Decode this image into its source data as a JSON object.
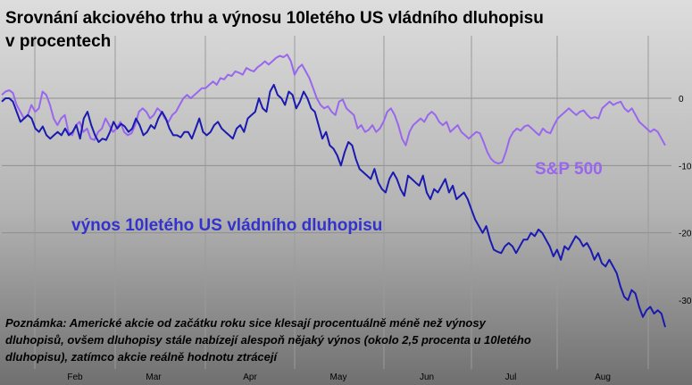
{
  "chart_data": {
    "type": "line",
    "title_line1": "Srovnání akciového trhu a výnosu 10letého US vládního dluhopisu",
    "title_line2": "v procentech",
    "note": "Poznámka: Americké akcie od začátku roku sice klesají procentuálně méně než výnosy dluhopisů, ovšem dluhopisy stále nabízejí alespoň nějaký výnos (okolo 2,5 procenta u 10letého dluhopisu), zatímco akcie reálně hodnotu ztrácejí",
    "x_ticks": [
      "Feb",
      "Mar",
      "Apr",
      "May",
      "Jun",
      "Jul",
      "Aug"
    ],
    "y_ticks": [
      0,
      -10,
      -20,
      -30
    ],
    "ylim": [
      -36,
      8
    ],
    "grid": true,
    "colors": {
      "sp500": "#9966ee",
      "yield": "#1a1ab0",
      "background_top": "#d8d8d8",
      "background_bottom": "#6e6e6e"
    },
    "series": [
      {
        "name": "S&P 500",
        "values": [
          0.5,
          1,
          1.2,
          0.8,
          -1,
          -2,
          -3,
          -2.5,
          -1,
          -2,
          -1.5,
          1,
          0.5,
          -1,
          -3,
          -4,
          -3,
          -2.5,
          -5,
          -5.5,
          -4,
          -3.5,
          -5,
          -4.5,
          -6,
          -6.2,
          -5,
          -4.5,
          -3,
          -4,
          -5,
          -4.5,
          -3.5,
          -5,
          -5.5,
          -5.2,
          -4,
          -2,
          -1.5,
          -2,
          -3,
          -2.5,
          -1.5,
          -2,
          -3,
          -3.5,
          -2.5,
          -2,
          -1,
          0,
          0.5,
          0,
          0.5,
          1,
          1.5,
          1.5,
          2,
          2.5,
          2,
          3,
          2.8,
          3.5,
          3.3,
          4,
          3.8,
          3.5,
          4.5,
          4.2,
          4,
          4.6,
          5,
          5.5,
          5,
          5.5,
          6,
          6.3,
          6.1,
          6.5,
          5.5,
          3.5,
          4.5,
          5,
          4,
          3,
          1.5,
          0,
          -1,
          -1.5,
          -1.2,
          -2,
          -2.5,
          -0.5,
          -0.2,
          -1.5,
          -2,
          -2.5,
          -4.5,
          -4,
          -5,
          -4.7,
          -4,
          -5,
          -4.5,
          -3.5,
          -2,
          -1.5,
          -2.5,
          -4,
          -6,
          -7,
          -5,
          -4,
          -3.5,
          -3,
          -3.5,
          -2.5,
          -2,
          -2.5,
          -3.5,
          -4,
          -3.5,
          -5,
          -4.5,
          -4,
          -5,
          -5.5,
          -6,
          -5.5,
          -5,
          -5.2,
          -6.5,
          -8,
          -9,
          -9.5,
          -9.7,
          -9.5,
          -8,
          -6,
          -5,
          -4.5,
          -4.8,
          -4.2,
          -4,
          -4.5,
          -5,
          -5.5,
          -4.5,
          -5,
          -5.2,
          -4,
          -3,
          -2.5,
          -2,
          -1.5,
          -2,
          -2.5,
          -2,
          -1.8,
          -2.5,
          -3,
          -2.8,
          -3,
          -1.5,
          -1,
          -0.5,
          -1,
          -0.7,
          -0.5,
          -1.5,
          -2,
          -1.5,
          -2.5,
          -3.5,
          -4,
          -4.5,
          -5,
          -4.6,
          -5,
          -6,
          -7
        ]
      },
      {
        "name": "výnos 10letého US vládního dluhopisu",
        "values": [
          -0.5,
          0,
          0,
          -0.5,
          -2,
          -3.5,
          -3,
          -2.5,
          -3,
          -4.5,
          -5,
          -4.2,
          -5.5,
          -6,
          -5.5,
          -5,
          -5.5,
          -4.5,
          -5.5,
          -5,
          -4,
          -6,
          -3,
          -2,
          -4,
          -5.5,
          -6.5,
          -6,
          -6.2,
          -5,
          -3.5,
          -4.5,
          -3.8,
          -4.2,
          -5,
          -4.5,
          -3,
          -4,
          -5.5,
          -5,
          -4,
          -4.5,
          -3,
          -2,
          -3,
          -4.5,
          -5.5,
          -5.5,
          -5.8,
          -5,
          -5,
          -6,
          -4.5,
          -3,
          -5,
          -5.5,
          -5,
          -4,
          -3.5,
          -4.5,
          -5,
          -5.5,
          -6,
          -4.5,
          -4,
          -5,
          -3,
          -2.5,
          -2,
          0,
          -1.5,
          -2,
          1,
          2,
          0.5,
          0,
          -1,
          1,
          0.5,
          -1.5,
          -0.5,
          1,
          0,
          -1.5,
          -2,
          -4,
          -6,
          -5,
          -7,
          -7.5,
          -8.5,
          -10,
          -8,
          -6.5,
          -7,
          -9,
          -10.5,
          -11,
          -11.5,
          -12,
          -10.5,
          -12.5,
          -13.5,
          -14,
          -12,
          -11,
          -12,
          -13.5,
          -14.5,
          -11.5,
          -12,
          -12.5,
          -13,
          -11.5,
          -14,
          -15,
          -13.5,
          -14,
          -13,
          -12,
          -14,
          -13,
          -15,
          -14.5,
          -14,
          -15,
          -16.5,
          -18,
          -19,
          -20,
          -19,
          -21,
          -22.5,
          -22.8,
          -23,
          -22,
          -21.5,
          -22,
          -23,
          -22,
          -21,
          -21,
          -20,
          -20.5,
          -19.5,
          -20,
          -21,
          -22,
          -23.5,
          -22.5,
          -24,
          -22,
          -22.5,
          -21.5,
          -20.5,
          -21,
          -22,
          -21.5,
          -22.5,
          -24,
          -23,
          -24.5,
          -25,
          -24,
          -25,
          -26,
          -28,
          -29.5,
          -30,
          -28.5,
          -29,
          -31,
          -32.5,
          -31.5,
          -31,
          -32,
          -31.5,
          -32,
          -34
        ]
      }
    ]
  }
}
